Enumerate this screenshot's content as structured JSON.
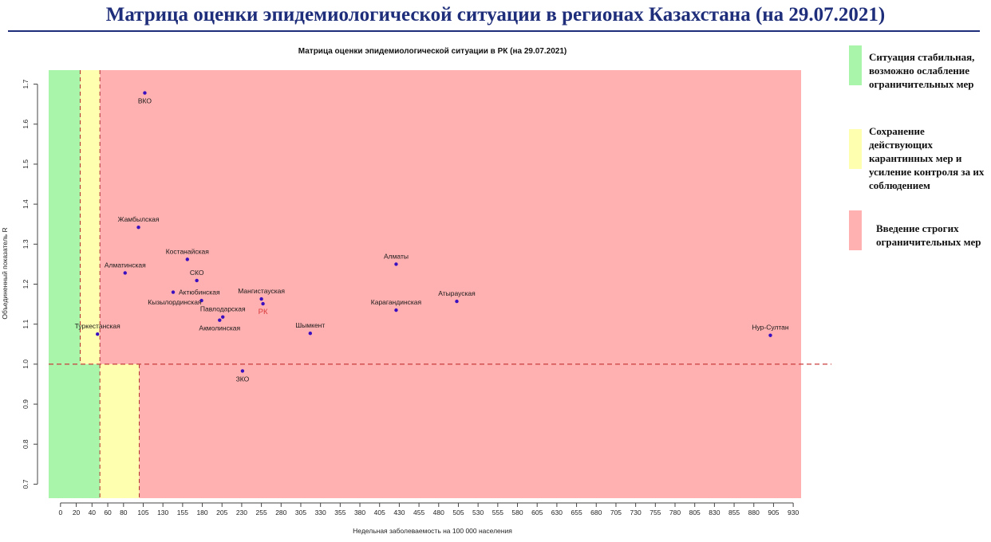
{
  "slide": {
    "title": "Матрица оценки эпидемиологической ситуации в регионах Казахстана (на 29.07.2021)"
  },
  "legend": [
    {
      "color": "#a9f5a9",
      "text": "Ситуация стабильная, возможно ослабление ограничительных мер"
    },
    {
      "color": "#ffffb0",
      "text": "Сохранение действующих карантинных мер и усиление контроля за их соблюдением"
    },
    {
      "color": "#ffb0b0",
      "text": "Введение строгих ограничительных мер"
    }
  ],
  "chart_data": {
    "type": "scatter",
    "title": "Матрица оценки эпидемиологической ситуации в РК (на 29.07.2021)",
    "xlabel": "Недельная заболеваемость на 100 000 населения",
    "ylabel": "Объединенный показатель R",
    "xlim": [
      -15,
      940
    ],
    "ylim": [
      0.665,
      1.735
    ],
    "x_ticks": [
      0,
      20,
      40,
      60,
      80,
      105,
      130,
      155,
      180,
      205,
      230,
      255,
      280,
      305,
      330,
      355,
      380,
      405,
      430,
      455,
      480,
      505,
      530,
      555,
      580,
      605,
      630,
      655,
      680,
      705,
      730,
      755,
      780,
      805,
      830,
      855,
      880,
      905,
      930
    ],
    "y_ticks": [
      0.7,
      0.8,
      0.9,
      1.0,
      1.1,
      1.2,
      1.3,
      1.4,
      1.5,
      1.6,
      1.7
    ],
    "zones": [
      {
        "label": "green-upper",
        "color": "#a9f5a9",
        "x0": -15,
        "x1": 25,
        "y0": 1.0,
        "y1": 1.735
      },
      {
        "label": "yellow-upper",
        "color": "#ffffb0",
        "x0": 25,
        "x1": 50,
        "y0": 1.0,
        "y1": 1.735
      },
      {
        "label": "red-upper",
        "color": "#ffb0b0",
        "x0": 50,
        "x1": 940,
        "y0": 1.0,
        "y1": 1.735
      },
      {
        "label": "green-lower",
        "color": "#a9f5a9",
        "x0": -15,
        "x1": 50,
        "y0": 0.665,
        "y1": 1.0
      },
      {
        "label": "yellow-lower",
        "color": "#ffffb0",
        "x0": 50,
        "x1": 100,
        "y0": 0.665,
        "y1": 1.0
      },
      {
        "label": "red-lower",
        "color": "#ffb0b0",
        "x0": 100,
        "x1": 940,
        "y0": 0.665,
        "y1": 1.0
      }
    ],
    "threshold_lines": [
      {
        "axis": "x",
        "value": 25,
        "y0": 1.0,
        "y1": 1.735
      },
      {
        "axis": "x",
        "value": 50,
        "y0": 0.665,
        "y1": 1.735
      },
      {
        "axis": "x",
        "value": 100,
        "y0": 0.665,
        "y1": 1.0
      },
      {
        "axis": "y",
        "value": 1.0
      }
    ],
    "points": [
      {
        "name": "ВКО",
        "x": 107,
        "y": 1.678,
        "label_pos": "below"
      },
      {
        "name": "Жамбылская",
        "x": 99,
        "y": 1.342,
        "label_pos": "above"
      },
      {
        "name": "Костанайская",
        "x": 161,
        "y": 1.262,
        "label_pos": "above"
      },
      {
        "name": "Алматинская",
        "x": 82,
        "y": 1.228,
        "label_pos": "above"
      },
      {
        "name": "СКО",
        "x": 173,
        "y": 1.209,
        "label_pos": "above"
      },
      {
        "name": "Актюбинская",
        "x": 143,
        "y": 1.18,
        "label_pos": "right"
      },
      {
        "name": "Кызылординская",
        "x": 179,
        "y": 1.159,
        "label_pos": "left"
      },
      {
        "name": "Мангистауская",
        "x": 255,
        "y": 1.163,
        "label_pos": "above"
      },
      {
        "name": "РК",
        "x": 257,
        "y": 1.151,
        "label_pos": "below",
        "highlight": true
      },
      {
        "name": "Павлодарская",
        "x": 206,
        "y": 1.118,
        "label_pos": "above"
      },
      {
        "name": "Акмолинская",
        "x": 202,
        "y": 1.11,
        "label_pos": "below"
      },
      {
        "name": "Туркестанская",
        "x": 47,
        "y": 1.075,
        "label_pos": "above"
      },
      {
        "name": "Шымкент",
        "x": 317,
        "y": 1.077,
        "label_pos": "above"
      },
      {
        "name": "ЗКО",
        "x": 231,
        "y": 0.983,
        "label_pos": "below"
      },
      {
        "name": "Алматы",
        "x": 426,
        "y": 1.25,
        "label_pos": "above"
      },
      {
        "name": "Карагандинская",
        "x": 426,
        "y": 1.135,
        "label_pos": "above"
      },
      {
        "name": "Атырауская",
        "x": 503,
        "y": 1.157,
        "label_pos": "above"
      },
      {
        "name": "Нур-Султан",
        "x": 901,
        "y": 1.072,
        "label_pos": "above"
      }
    ]
  }
}
